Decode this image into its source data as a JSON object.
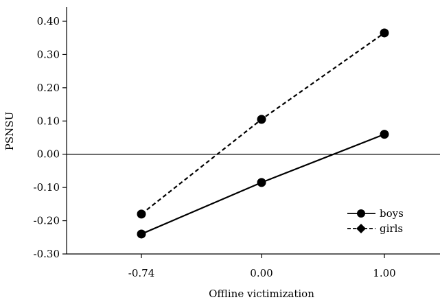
{
  "chart_data": {
    "type": "line",
    "x_categories": [
      "-0.74",
      "0.00",
      "1.00"
    ],
    "series": [
      {
        "name": "boys",
        "values": [
          -0.24,
          -0.085,
          0.06
        ],
        "line_style": "solid",
        "marker": "circle"
      },
      {
        "name": "girls",
        "values": [
          -0.18,
          0.105,
          0.365
        ],
        "line_style": "dashed",
        "marker": "diamond"
      }
    ],
    "xlabel": "Offline victimization",
    "ylabel": "PSNSU",
    "ylim": [
      -0.3,
      0.4
    ],
    "y_ticks": [
      "0.40",
      "0.30",
      "0.20",
      "0.10",
      "0.00",
      "-0.10",
      "-0.20",
      "-0.30"
    ],
    "y_tick_values": [
      0.4,
      0.3,
      0.2,
      0.1,
      0.0,
      -0.1,
      -0.2,
      -0.3
    ],
    "reference_line_y": 0.0,
    "grid": false,
    "legend_position": "bottom-right",
    "colors": {
      "lines": "#000000",
      "background": "#ffffff"
    }
  }
}
